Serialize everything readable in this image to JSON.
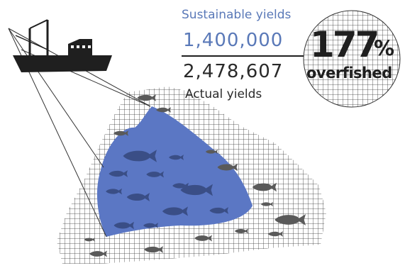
{
  "colors": {
    "accent_blue": "#5a79b8",
    "net_fill": "#5b77c4",
    "dark": "#1f1f1f",
    "grid_line": "#333333",
    "fish_on_net": "#5a5a5a",
    "fish_in_net": "#3a4e86"
  },
  "stats": {
    "sustainable_label": "Sustainable yields",
    "sustainable_value": "1,400,000",
    "actual_value": "2,478,607",
    "actual_label": "Actual yields",
    "percent_number": "177",
    "percent_sign": "%",
    "percent_word": "overfished"
  },
  "icons": [
    "fishing-boat-icon",
    "fish-icon"
  ]
}
